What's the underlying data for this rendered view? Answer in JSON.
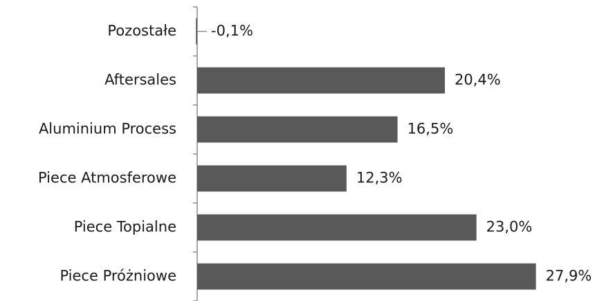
{
  "chart_data": {
    "type": "bar",
    "orientation": "horizontal",
    "categories": [
      "Pozostałe",
      "Aftersales",
      "Aluminium Process",
      "Piece Atmosferowe",
      "Piece Topialne",
      "Piece Próżniowe"
    ],
    "values": [
      -0.1,
      20.4,
      16.5,
      12.3,
      23.0,
      27.9
    ],
    "value_labels": [
      "-0,1%",
      "20,4%",
      "16,5%",
      "12,3%",
      "23,0%",
      "27,9%"
    ],
    "title": "",
    "xlabel": "",
    "ylabel": "",
    "xlim": [
      -0.1,
      27.9
    ],
    "grid": false,
    "legend": "none",
    "bar_color": "#595959"
  }
}
